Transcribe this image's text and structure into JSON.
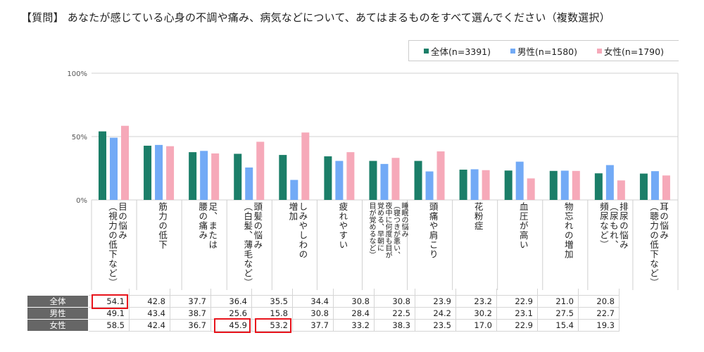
{
  "title": "【質問】 あなたが感じている心身の不調や痛み、病気などについて、あてはまるものをすべて選んでください（複数選択）",
  "colors": {
    "all": "#1b7e68",
    "male": "#72aaf6",
    "female": "#f6a9b9",
    "highlight": "#e8141c"
  },
  "chart_data": {
    "type": "bar",
    "title": "あなたが感じている心身の不調や痛み、病気など",
    "ylim": [
      0,
      100
    ],
    "yticks": [
      "0%",
      "50%",
      "100%"
    ],
    "legend_position": "top-right",
    "categories": [
      "目の悩み\n（視力の低下など）",
      "筋力の低下",
      "足、または\n腰の痛み",
      "頭髪の悩み\n（白髪、薄毛など）",
      "しみやしわの\n増加",
      "疲れやすい",
      "睡眠の悩み\n（寝つきが悪い、\n夜中に何度も目が\n覚める、早朝に\n目が覚めるなど）",
      "頭痛や肩こり",
      "花粉症",
      "血圧が高い",
      "物忘れの増加",
      "排尿の悩み\n（尿もれ、\n頻尿など）",
      "耳の悩み\n（聴力の低下など）"
    ],
    "series": [
      {
        "name": "全体",
        "legend": "全体(n=3391)",
        "values": [
          54.1,
          42.8,
          37.7,
          36.4,
          35.5,
          34.4,
          30.8,
          30.8,
          23.9,
          23.2,
          22.9,
          21.0,
          20.8
        ]
      },
      {
        "name": "男性",
        "legend": "男性(n=1580)",
        "values": [
          49.1,
          43.4,
          38.7,
          25.6,
          15.8,
          30.8,
          28.4,
          22.5,
          24.2,
          30.2,
          23.1,
          27.5,
          22.7
        ]
      },
      {
        "name": "女性",
        "legend": "女性(n=1790)",
        "values": [
          58.5,
          42.4,
          36.7,
          45.9,
          53.2,
          37.7,
          33.2,
          38.3,
          23.5,
          17.0,
          22.9,
          15.4,
          19.3
        ]
      }
    ],
    "highlighted": [
      {
        "series": 0,
        "index": 0
      },
      {
        "series": 2,
        "index": 3
      },
      {
        "series": 2,
        "index": 4
      }
    ]
  }
}
